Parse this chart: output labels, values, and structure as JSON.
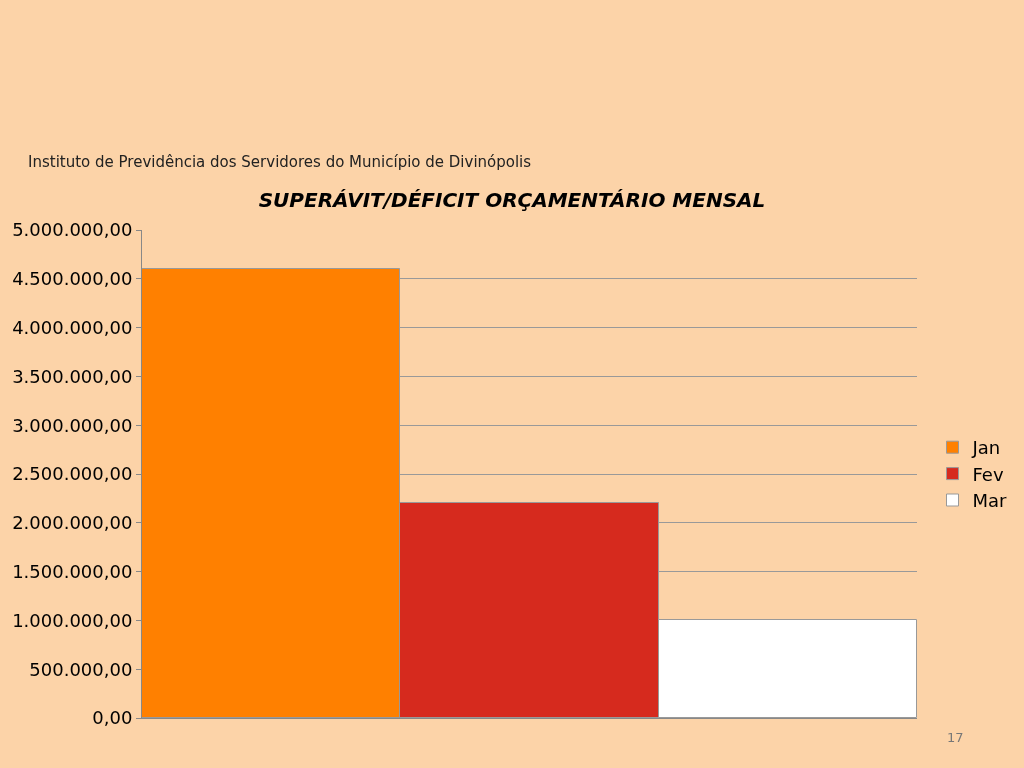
{
  "chart_data": {
    "type": "bar",
    "title": "SUPERÁVIT/DÉFICIT ORÇAMENTÁRIO MENSAL",
    "categories": [
      null
    ],
    "series": [
      {
        "name": "Jan",
        "color": "#ff8000",
        "values": [
          4600000
        ]
      },
      {
        "name": "Fev",
        "color": "#d62a1e",
        "values": [
          2200000
        ]
      },
      {
        "name": "Mar",
        "color": "#ffffff",
        "values": [
          1000000
        ]
      }
    ],
    "ylim": [
      0,
      5000000
    ],
    "yticks": [
      {
        "value": 0,
        "label": "0,00"
      },
      {
        "value": 500000,
        "label": "500.000,00"
      },
      {
        "value": 1000000,
        "label": "1.000.000,00"
      },
      {
        "value": 1500000,
        "label": "1.500.000,00"
      },
      {
        "value": 2000000,
        "label": "2.000.000,00"
      },
      {
        "value": 2500000,
        "label": "2.500.000,00"
      },
      {
        "value": 3000000,
        "label": "3.000.000,00"
      },
      {
        "value": 3500000,
        "label": "3.500.000,00"
      },
      {
        "value": 4000000,
        "label": "4.000.000,00"
      },
      {
        "value": 4500000,
        "label": "4.500.000,00"
      },
      {
        "value": 5000000,
        "label": "5.000.000,00"
      }
    ],
    "grid": "y",
    "legend": "right",
    "annotations": [
      "Instituto de Previdência dos Servidores do Município de Divinópolis",
      "17"
    ]
  }
}
